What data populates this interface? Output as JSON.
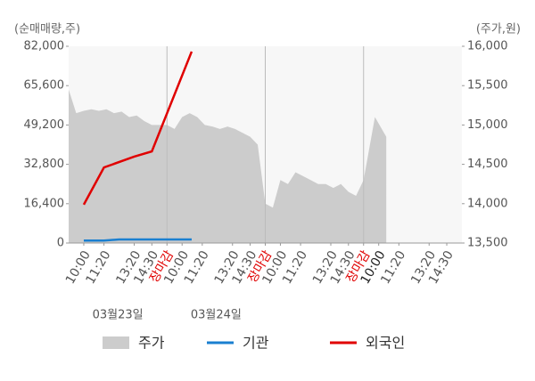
{
  "chart_data": {
    "type": "line",
    "y_axis_title": "(순매매량,주)",
    "y2_axis_title": "(주가,원)",
    "xlim": [
      0,
      1560
    ],
    "xticks": [
      {
        "value": 60,
        "label": "10:00"
      },
      {
        "value": 140,
        "label": "11:20"
      },
      {
        "value": 260,
        "label": "13:20"
      },
      {
        "value": 330,
        "label": "14:30"
      },
      {
        "value": 390,
        "label": "장마감"
      },
      {
        "value": 450,
        "label": "10:00"
      },
      {
        "value": 530,
        "label": "11:20"
      },
      {
        "value": 650,
        "label": "13:20"
      },
      {
        "value": 720,
        "label": "14:30"
      },
      {
        "value": 780,
        "label": "장마감"
      },
      {
        "value": 840,
        "label": "10:00"
      },
      {
        "value": 920,
        "label": "11:20"
      },
      {
        "value": 1040,
        "label": "13:20"
      },
      {
        "value": 1110,
        "label": "14:30"
      },
      {
        "value": 1170,
        "label": "장마감"
      },
      {
        "value": 1230,
        "label": "10:00"
      },
      {
        "value": 1310,
        "label": "11:20"
      },
      {
        "value": 1430,
        "label": "13:20"
      },
      {
        "value": 1500,
        "label": "14:30"
      }
    ],
    "xtick_colors": [
      "#555",
      "#555",
      "#555",
      "#555",
      "#e00000",
      "#555",
      "#555",
      "#555",
      "#555",
      "#e00000",
      "#555",
      "#555",
      "#555",
      "#555",
      "#e00000",
      "#222",
      "#555",
      "#555",
      "#555"
    ],
    "date_labels": [
      {
        "value": 195,
        "label": "03월23일"
      },
      {
        "value": 585,
        "label": "03월24일"
      }
    ],
    "ylim": [
      0,
      82000
    ],
    "yticks": [
      0,
      {
        "value": 16400,
        "label": "16,400"
      },
      {
        "value": 32800,
        "label": "32,800"
      },
      {
        "value": 49200,
        "label": "49,200"
      },
      {
        "value": 65600,
        "label": "65,600"
      },
      {
        "value": 82000,
        "label": "82,000"
      }
    ],
    "y2lim": [
      13500,
      16000
    ],
    "y2ticks": [
      {
        "value": 13500,
        "label": "13,500"
      },
      {
        "value": 14000,
        "label": "14,000"
      },
      {
        "value": 14500,
        "label": "14,500"
      },
      {
        "value": 15000,
        "label": "15,000"
      },
      {
        "value": 15500,
        "label": "15,500"
      },
      {
        "value": 16000,
        "label": "16,000"
      }
    ],
    "series": [
      {
        "name": "주가",
        "color": "#cccccc",
        "type": "area",
        "axis": "y2",
        "x": [
          0,
          30,
          60,
          90,
          120,
          150,
          180,
          210,
          240,
          270,
          300,
          330,
          360,
          390,
          420,
          450,
          480,
          510,
          540,
          570,
          600,
          630,
          660,
          690,
          720,
          750,
          780,
          810,
          840,
          870,
          900,
          930,
          960,
          990,
          1020,
          1050,
          1080,
          1110,
          1140,
          1170,
          1215,
          1260
        ],
        "values": [
          15450,
          15150,
          15180,
          15200,
          15180,
          15200,
          15150,
          15170,
          15100,
          15120,
          15050,
          15000,
          15000,
          15000,
          14950,
          15100,
          15150,
          15100,
          15000,
          14980,
          14950,
          14980,
          14950,
          14900,
          14850,
          14750,
          14000,
          13950,
          14300,
          14250,
          14400,
          14350,
          14300,
          14250,
          14250,
          14200,
          14250,
          14150,
          14100,
          14300,
          15100,
          14850
        ]
      },
      {
        "name": "기관",
        "color": "#1a7fd0",
        "type": "line",
        "axis": "y",
        "x": [
          60,
          140,
          200,
          488
        ],
        "values": [
          1000,
          1000,
          1500,
          1500
        ]
      },
      {
        "name": "외국인",
        "color": "#e00000",
        "type": "line",
        "axis": "y",
        "x": [
          60,
          140,
          260,
          330,
          488
        ],
        "values": [
          16000,
          31500,
          36000,
          38200,
          79800
        ]
      }
    ]
  }
}
